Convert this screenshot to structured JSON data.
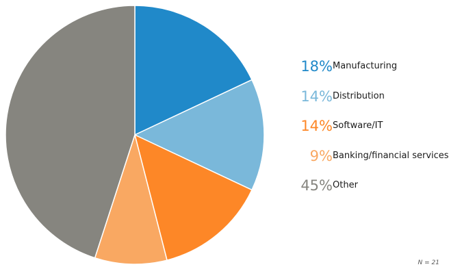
{
  "chart_data": {
    "type": "pie",
    "categories": [
      "Manufacturing",
      "Distribution",
      "Software/IT",
      "Banking/financial services",
      "Other"
    ],
    "values": [
      18,
      14,
      14,
      9,
      45
    ],
    "value_labels": [
      "18%",
      "14%",
      "14%",
      "9%",
      "45%"
    ],
    "colors": [
      "#2089c9",
      "#7ab8da",
      "#fd8727",
      "#f9a862",
      "#86857f"
    ],
    "start_angle": "12 o'clock",
    "direction": "clockwise",
    "legend_placement": "right",
    "note": "N = 21"
  }
}
